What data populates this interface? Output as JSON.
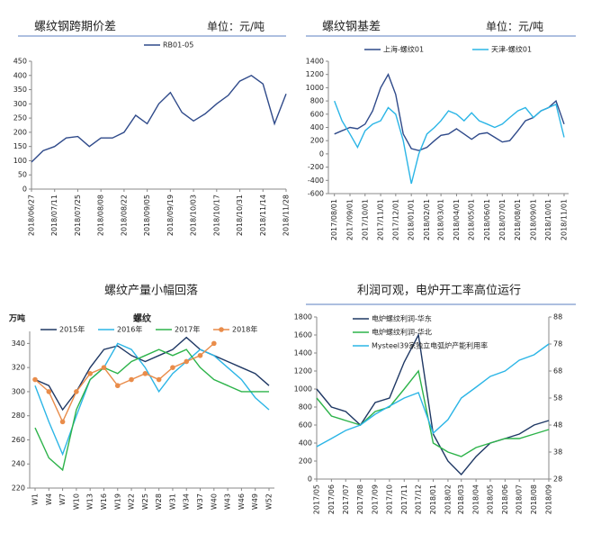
{
  "chart_data": [
    {
      "type": "line",
      "title": "螺纹钢跨期价差",
      "unit": "单位：元/吨",
      "x": [
        "2018/06/27",
        "2018/07/04",
        "2018/07/11",
        "2018/07/18",
        "2018/07/25",
        "2018/08/01",
        "2018/08/08",
        "2018/08/15",
        "2018/08/22",
        "2018/08/29",
        "2018/09/05",
        "2018/09/12",
        "2018/09/19",
        "2018/09/26",
        "2018/10/03",
        "2018/10/10",
        "2018/10/17",
        "2018/10/24",
        "2018/10/31",
        "2018/11/07",
        "2018/11/14",
        "2018/11/21",
        "2018/11/28"
      ],
      "series": [
        {
          "name": "RB01-05",
          "color": "#2f4a8a",
          "values": [
            95,
            135,
            150,
            180,
            185,
            150,
            180,
            180,
            200,
            260,
            230,
            300,
            340,
            270,
            240,
            265,
            300,
            330,
            380,
            400,
            370,
            230,
            335
          ]
        }
      ],
      "xlim": [
        "2018/06/27",
        "2018/11/28"
      ],
      "xticks": [
        "2018/06/27",
        "2018/07/11",
        "2018/07/25",
        "2018/08/08",
        "2018/08/22",
        "2018/09/05",
        "2018/09/19",
        "2018/10/03",
        "2018/10/17",
        "2018/10/31",
        "2018/11/14",
        "2018/11/28"
      ],
      "ylim": [
        0,
        450
      ],
      "yticks": [
        0,
        50,
        100,
        150,
        200,
        250,
        300,
        350,
        400,
        450
      ]
    },
    {
      "type": "line",
      "title": "螺纹钢基差",
      "unit": "单位：元/吨",
      "x": [
        "2017/08/01",
        "2017/08/16",
        "2017/09/01",
        "2017/09/16",
        "2017/10/01",
        "2017/10/16",
        "2017/11/01",
        "2017/11/16",
        "2017/12/01",
        "2017/12/16",
        "2018/01/01",
        "2018/01/16",
        "2018/02/01",
        "2018/02/16",
        "2018/03/01",
        "2018/03/16",
        "2018/04/01",
        "2018/04/16",
        "2018/05/01",
        "2018/05/16",
        "2018/06/01",
        "2018/06/16",
        "2018/07/01",
        "2018/07/16",
        "2018/08/01",
        "2018/08/16",
        "2018/09/01",
        "2018/09/16",
        "2018/10/01",
        "2018/10/16",
        "2018/11/01"
      ],
      "series": [
        {
          "name": "上海-螺纹01",
          "color": "#2f4a8a",
          "values": [
            300,
            350,
            400,
            380,
            450,
            650,
            1000,
            1200,
            900,
            300,
            80,
            50,
            100,
            200,
            280,
            300,
            380,
            300,
            220,
            300,
            320,
            250,
            180,
            200,
            350,
            500,
            550,
            650,
            700,
            800,
            450
          ]
        },
        {
          "name": "天津-螺纹01",
          "color": "#2bb5e6",
          "values": [
            800,
            500,
            300,
            100,
            350,
            450,
            500,
            700,
            600,
            200,
            -450,
            0,
            300,
            400,
            500,
            650,
            600,
            500,
            620,
            500,
            450,
            400,
            450,
            550,
            650,
            700,
            550,
            650,
            700,
            750,
            250
          ]
        }
      ],
      "xlim": [
        "2017/07/20",
        "2018/11/10"
      ],
      "xticks": [
        "2017/08/01",
        "2017/09/01",
        "2017/10/01",
        "2017/11/01",
        "2017/12/01",
        "2018/01/01",
        "2018/02/01",
        "2018/03/01",
        "2018/04/01",
        "2018/05/01",
        "2018/06/01",
        "2018/07/01",
        "2018/08/01",
        "2018/09/01",
        "2018/10/01",
        "2018/11/01"
      ],
      "ylim": [
        -600,
        1400
      ],
      "yticks": [
        -600,
        -400,
        -200,
        0,
        200,
        400,
        600,
        800,
        1000,
        1200,
        1400
      ]
    },
    {
      "type": "line",
      "title": "螺纹产量小幅回落",
      "subtitle": "螺纹",
      "ylabel": "万吨",
      "categories": [
        "W1",
        "W4",
        "W7",
        "W10",
        "W13",
        "W16",
        "W19",
        "W22",
        "W25",
        "W28",
        "W31",
        "W34",
        "W37",
        "W40",
        "W43",
        "W46",
        "W49",
        "W52"
      ],
      "series": [
        {
          "name": "2015年",
          "color": "#1f3864",
          "values": [
            310,
            305,
            285,
            300,
            320,
            335,
            338,
            330,
            325,
            330,
            335,
            345,
            335,
            330,
            325,
            320,
            315,
            305
          ]
        },
        {
          "name": "2016年",
          "color": "#2bb5e6",
          "values": [
            305,
            275,
            248,
            280,
            310,
            320,
            340,
            335,
            320,
            300,
            315,
            325,
            335,
            330,
            320,
            310,
            295,
            285
          ]
        },
        {
          "name": "2017年",
          "color": "#2db34a",
          "values": [
            270,
            245,
            235,
            285,
            310,
            320,
            315,
            325,
            330,
            335,
            330,
            335,
            320,
            310,
            305,
            300,
            300,
            300
          ]
        },
        {
          "name": "2018年",
          "color": "#e98c4a",
          "marker": "circle",
          "values": [
            310,
            300,
            275,
            300,
            315,
            320,
            305,
            310,
            315,
            310,
            320,
            325,
            330,
            340,
            null,
            null,
            null,
            null
          ]
        }
      ],
      "ylim": [
        220,
        350
      ],
      "yticks": [
        220,
        240,
        260,
        280,
        300,
        320,
        340
      ]
    },
    {
      "type": "line",
      "title": "利润可观，电炉开工率高位运行",
      "x": [
        "2017/05",
        "2017/06",
        "2017/07",
        "2017/08",
        "2017/09",
        "2017/10",
        "2017/11",
        "2017/12",
        "2018/01",
        "2018/02",
        "2018/03",
        "2018/04",
        "2018/05",
        "2018/06",
        "2018/07",
        "2018/08",
        "2018/09"
      ],
      "series": [
        {
          "name": "电炉螺纹利润-华东",
          "color": "#1f3864",
          "values": [
            1000,
            800,
            750,
            600,
            850,
            900,
            1300,
            1600,
            500,
            200,
            50,
            250,
            400,
            450,
            500,
            600,
            650
          ]
        },
        {
          "name": "电炉螺纹利润-华北",
          "color": "#2db34a",
          "values": [
            900,
            700,
            650,
            600,
            750,
            800,
            1000,
            1200,
            400,
            300,
            250,
            350,
            400,
            450,
            450,
            500,
            550
          ]
        },
        {
          "name": "Mysteel39家独立电弧炉产能利用率",
          "color": "#2bb5e6",
          "axis": "y2",
          "values": [
            40,
            43,
            46,
            48,
            52,
            55,
            58,
            60,
            45,
            50,
            58,
            62,
            66,
            68,
            72,
            74,
            78
          ]
        }
      ],
      "xlim": [
        "2017/05",
        "2018/09"
      ],
      "xticks": [
        "2017/05",
        "2017/06",
        "2017/07",
        "2017/08",
        "2017/09",
        "2017/10",
        "2017/11",
        "2017/12",
        "2018/01",
        "2018/02",
        "2018/03",
        "2018/04",
        "2018/05",
        "2018/06",
        "2018/07",
        "2018/08",
        "2018/09"
      ],
      "ylim": [
        0,
        1800
      ],
      "yticks": [
        0,
        200,
        400,
        600,
        800,
        1000,
        1200,
        1400,
        1600,
        1800
      ],
      "y2lim": [
        28,
        88
      ],
      "y2ticks": [
        28,
        38,
        48,
        58,
        68,
        78,
        88
      ]
    }
  ]
}
